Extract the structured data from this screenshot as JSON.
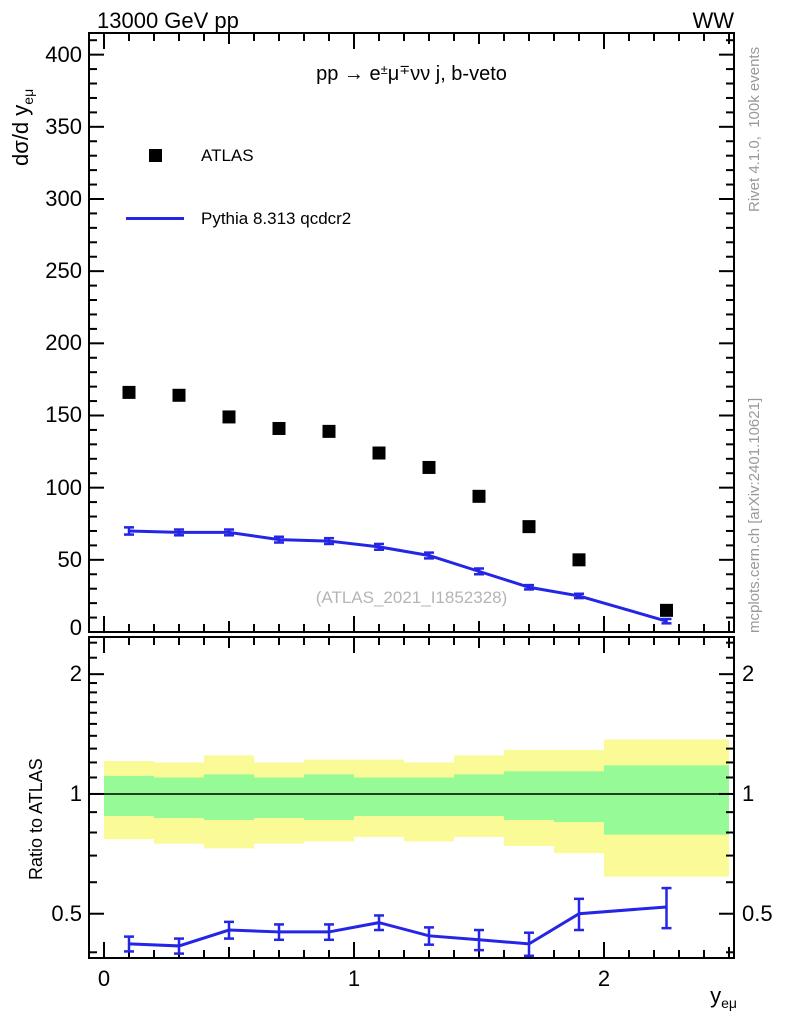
{
  "header": {
    "left": "13000 GeV pp",
    "right": "WW"
  },
  "process": {
    "pp": "pp ",
    "arrow": "→",
    "sp": " ",
    "e": "e",
    "e_sup": "±",
    "mu": "μ",
    "mu_sup": "∓",
    "suffix": "νν j, b-veto"
  },
  "legend": {
    "items": [
      {
        "label": "ATLAS",
        "marker": "filled-square",
        "color": "#000000"
      },
      {
        "label": "Pythia 8.313 qcdcr2",
        "marker": "line",
        "color": "#2525e6"
      }
    ]
  },
  "watermark": "(ATLAS_2021_I1852328)",
  "side_notes": {
    "rivet": "Rivet 4.1.0,  100k events",
    "mcplots": "mcplots.cern.ch [arXiv:2401.10621]"
  },
  "axes": {
    "y_title_main": "dσ/d y",
    "y_title_sub": "eμ",
    "x_title_main": "y",
    "x_title_sub": "eμ",
    "ratio_y_title": "Ratio to ATLAS",
    "main_y_ticks": [
      0,
      50,
      100,
      150,
      200,
      250,
      300,
      350,
      400
    ],
    "ratio_y_ticks": [
      0.5,
      1,
      2
    ],
    "x_ticks": [
      0,
      1,
      2
    ]
  },
  "colors": {
    "mc_blue": "#2525e6",
    "band_yellow": "#fafa96",
    "band_green": "#96fa96",
    "note_gray": "#999999",
    "watermark_gray": "#b5b5b5"
  },
  "chart_data": [
    {
      "type": "scatter",
      "title": "pp → e±μ∓νν j, b-veto",
      "xlabel": "y_eμ",
      "ylabel": "dσ/d y_eμ",
      "xlim": [
        -0.06,
        2.52
      ],
      "ylim": [
        0,
        415
      ],
      "grid": false,
      "legend_position": "top-left",
      "x": [
        0.1,
        0.3,
        0.5,
        0.7,
        0.9,
        1.1,
        1.3,
        1.5,
        1.7,
        1.9,
        2.25
      ],
      "series": [
        {
          "name": "ATLAS",
          "style": "scatter-square",
          "color": "#000000",
          "values": [
            166,
            164,
            149,
            141,
            139,
            124,
            114,
            94,
            73,
            50,
            15
          ]
        },
        {
          "name": "Pythia 8.313 qcdcr2",
          "style": "line-errorbars",
          "color": "#2525e6",
          "values": [
            70,
            69,
            69,
            64,
            63,
            59,
            53,
            42,
            31,
            25,
            7.5
          ],
          "errors": [
            2.5,
            2,
            2,
            2,
            2,
            2,
            2,
            2,
            1.5,
            1.5,
            1.5
          ]
        }
      ]
    },
    {
      "type": "ratio",
      "ylabel": "Ratio to ATLAS",
      "yscale": "log",
      "ylim": [
        0.387,
        2.48
      ],
      "reference_line": 1,
      "bin_edges": [
        0,
        0.2,
        0.4,
        0.6,
        0.8,
        1.0,
        1.2,
        1.4,
        1.6,
        1.8,
        2.0,
        2.5
      ],
      "bands": {
        "yellow_lo": [
          0.77,
          0.75,
          0.73,
          0.75,
          0.76,
          0.78,
          0.76,
          0.78,
          0.74,
          0.71,
          0.62
        ],
        "yellow_hi": [
          1.21,
          1.2,
          1.25,
          1.2,
          1.22,
          1.22,
          1.2,
          1.25,
          1.29,
          1.29,
          1.37
        ],
        "green_lo": [
          0.88,
          0.87,
          0.86,
          0.87,
          0.86,
          0.88,
          0.88,
          0.88,
          0.86,
          0.85,
          0.79
        ],
        "green_hi": [
          1.11,
          1.1,
          1.12,
          1.1,
          1.12,
          1.1,
          1.1,
          1.12,
          1.14,
          1.14,
          1.18
        ]
      },
      "x": [
        0.1,
        0.3,
        0.5,
        0.7,
        0.9,
        1.1,
        1.3,
        1.5,
        1.7,
        1.9,
        2.25
      ],
      "series": [
        {
          "name": "Pythia 8.313 qcdcr2 / ATLAS",
          "style": "line-errorbars",
          "color": "#2525e6",
          "values": [
            0.42,
            0.415,
            0.455,
            0.45,
            0.45,
            0.475,
            0.44,
            0.43,
            0.42,
            0.5,
            0.52
          ],
          "errors": [
            0.018,
            0.018,
            0.022,
            0.02,
            0.02,
            0.02,
            0.022,
            0.025,
            0.028,
            0.045,
            0.06
          ]
        }
      ]
    }
  ]
}
